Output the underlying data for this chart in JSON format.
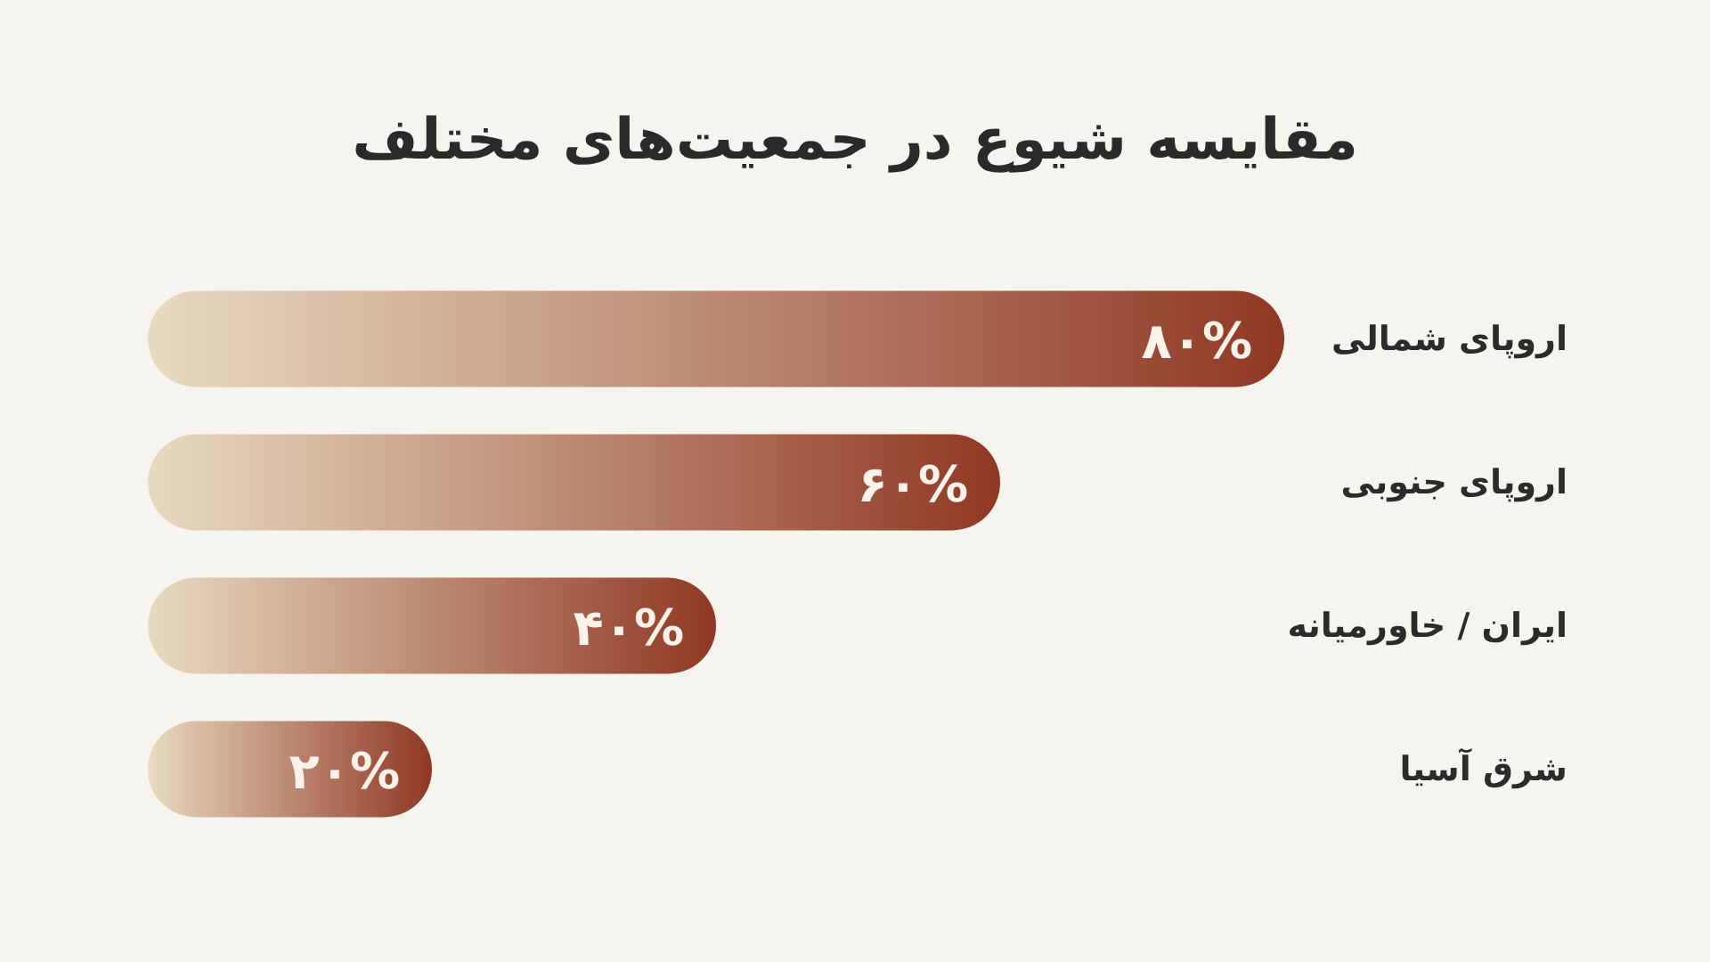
{
  "chart_data": {
    "type": "bar",
    "orientation": "horizontal",
    "title": "مقایسه شیوع در جمعیت‌های مختلف",
    "categories": [
      "اروپای شمالی",
      "اروپای جنوبی",
      "ایران / خاورمیانه",
      "شرق آسیا"
    ],
    "values": [
      80,
      60,
      40,
      20
    ],
    "value_labels": [
      "۸۰%",
      "۶۰%",
      "۴۰%",
      "۲۰%"
    ],
    "color": "#8f3824"
  }
}
